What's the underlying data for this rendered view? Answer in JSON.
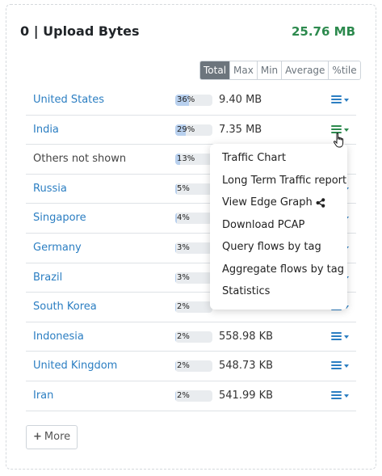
{
  "card": {
    "title": "0 | Upload Bytes",
    "total": "25.76 MB"
  },
  "filters": [
    "Total",
    "Max",
    "Min",
    "Average",
    "%tile"
  ],
  "active_filter": "Total",
  "rows": [
    {
      "label": "United States",
      "link": true,
      "pct": "36%",
      "pct_value": 36,
      "value": "9.40 MB",
      "has_menu": true
    },
    {
      "label": "India",
      "link": true,
      "pct": "29%",
      "pct_value": 29,
      "value": "7.35 MB",
      "has_menu": true
    },
    {
      "label": "Others not shown",
      "link": false,
      "pct": "13%",
      "pct_value": 13,
      "value": "",
      "has_menu": false
    },
    {
      "label": "Russia",
      "link": true,
      "pct": "5%",
      "pct_value": 5,
      "value": "",
      "has_menu": true
    },
    {
      "label": "Singapore",
      "link": true,
      "pct": "4%",
      "pct_value": 4,
      "value": "",
      "has_menu": true
    },
    {
      "label": "Germany",
      "link": true,
      "pct": "3%",
      "pct_value": 3,
      "value": "",
      "has_menu": true
    },
    {
      "label": "Brazil",
      "link": true,
      "pct": "3%",
      "pct_value": 3,
      "value": "",
      "has_menu": true
    },
    {
      "label": "South Korea",
      "link": true,
      "pct": "2%",
      "pct_value": 2,
      "value": "",
      "has_menu": true
    },
    {
      "label": "Indonesia",
      "link": true,
      "pct": "2%",
      "pct_value": 2,
      "value": "558.98 KB",
      "has_menu": true
    },
    {
      "label": "United Kingdom",
      "link": true,
      "pct": "2%",
      "pct_value": 2,
      "value": "548.73 KB",
      "has_menu": true
    },
    {
      "label": "Iran",
      "link": true,
      "pct": "2%",
      "pct_value": 2,
      "value": "541.99 KB",
      "has_menu": true
    }
  ],
  "more_button": "More",
  "dropdown": {
    "items": [
      "Traffic Chart",
      "Long Term Traffic report",
      "View Edge Graph",
      "Download PCAP",
      "Query flows by tag",
      "Aggregate flows by tag",
      "Statistics"
    ]
  },
  "colors": {
    "link": "#2b7ec2",
    "total_green": "#2d8a4e",
    "active_filter_bg": "#6c757d",
    "progress_fill": "#b8d0ee"
  }
}
